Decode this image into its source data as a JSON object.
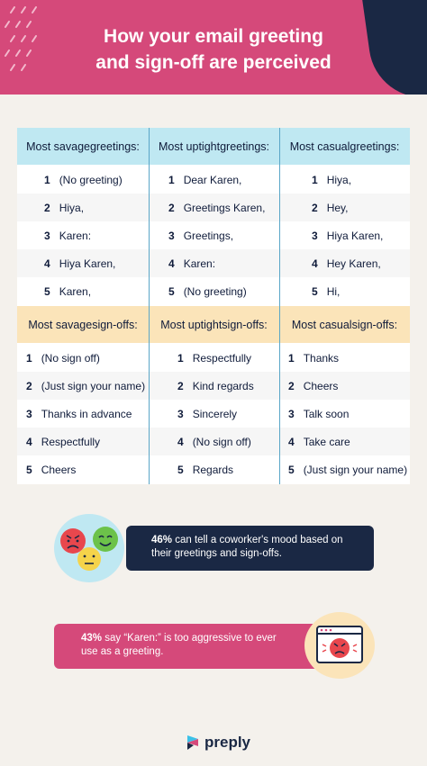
{
  "title": {
    "line1": "How your email greeting",
    "line2": "and sign-off are perceived"
  },
  "greetings": {
    "headers": [
      {
        "line1": "Most savage",
        "line2": "greetings:"
      },
      {
        "line1": "Most uptight",
        "line2": "greetings:"
      },
      {
        "line1": "Most casual",
        "line2": "greetings:"
      }
    ],
    "columns": [
      [
        "(No greeting)",
        "Hiya,",
        "Karen:",
        "Hiya Karen,",
        "Karen,"
      ],
      [
        "Dear Karen,",
        "Greetings Karen,",
        "Greetings,",
        "Karen:",
        "(No greeting)"
      ],
      [
        "Hiya,",
        "Hey,",
        "Hiya Karen,",
        "Hey Karen,",
        "Hi,"
      ]
    ]
  },
  "signoffs": {
    "headers": [
      {
        "line1": "Most savage",
        "line2": "sign-offs:"
      },
      {
        "line1": "Most uptight",
        "line2": "sign-offs:"
      },
      {
        "line1": "Most casual",
        "line2": "sign-offs:"
      }
    ],
    "columns": [
      [
        "(No sign off)",
        "(Just sign your name)",
        "Thanks in advance",
        "Respectfully",
        "Cheers"
      ],
      [
        "Respectfully",
        "Kind regards",
        "Sincerely",
        "(No sign off)",
        "Regards"
      ],
      [
        "Thanks",
        "Cheers",
        "Talk soon",
        "Take care",
        "(Just sign your name)"
      ]
    ]
  },
  "numbers": [
    "1",
    "2",
    "3",
    "4",
    "5"
  ],
  "stat1": {
    "pct": "46%",
    "line1_rest": " can tell a coworker's mood based on",
    "line2": "their greetings and sign-offs."
  },
  "stat2": {
    "pct": "43%",
    "line1_rest": " say “Karen:” is too aggressive to ever",
    "line2": "use as a greeting."
  },
  "brand": {
    "name": "preply"
  },
  "colors": {
    "pink": "#d5497a",
    "navy": "#1a2844",
    "lightblue": "#bfe8f2",
    "yellow": "#fbe4b9",
    "background": "#f4f1ec"
  },
  "icons": [
    "angry-face-icon",
    "smiling-face-icon",
    "neutral-face-icon",
    "angry-window-icon",
    "preply-logo-icon"
  ]
}
